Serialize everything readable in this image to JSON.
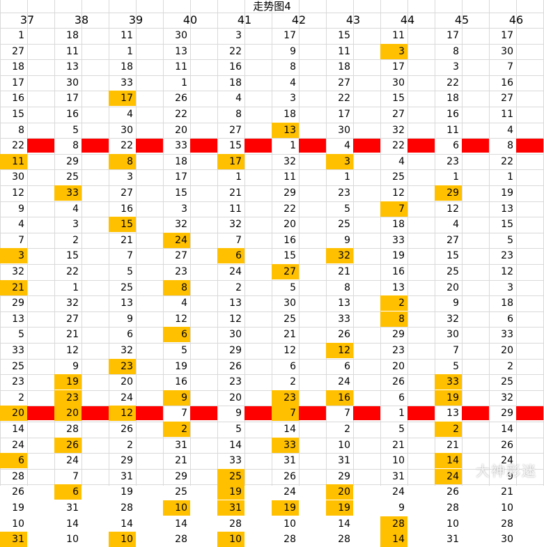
{
  "title": "走势图4",
  "headers": [
    "37",
    "38",
    "39",
    "40",
    "41",
    "42",
    "43",
    "44",
    "45",
    "46"
  ],
  "rows": [
    [
      "1",
      "18",
      "11",
      "30",
      "3",
      "17",
      "15",
      "11",
      "17",
      "17"
    ],
    [
      "27",
      "11",
      "1",
      "13",
      "22",
      "9",
      "11",
      "3",
      "8",
      "30"
    ],
    [
      "18",
      "13",
      "18",
      "11",
      "16",
      "8",
      "18",
      "17",
      "3",
      "7"
    ],
    [
      "17",
      "30",
      "33",
      "1",
      "18",
      "4",
      "27",
      "30",
      "22",
      "16"
    ],
    [
      "16",
      "17",
      "17",
      "26",
      "4",
      "3",
      "22",
      "15",
      "18",
      "27"
    ],
    [
      "15",
      "16",
      "4",
      "22",
      "8",
      "18",
      "17",
      "27",
      "16",
      "11"
    ],
    [
      "8",
      "5",
      "30",
      "20",
      "27",
      "13",
      "30",
      "32",
      "11",
      "4"
    ],
    [
      "22",
      "8",
      "22",
      "33",
      "15",
      "1",
      "4",
      "22",
      "6",
      "8"
    ],
    [
      "11",
      "29",
      "8",
      "18",
      "17",
      "32",
      "3",
      "4",
      "23",
      "22"
    ],
    [
      "30",
      "25",
      "3",
      "17",
      "1",
      "11",
      "1",
      "25",
      "1",
      "1"
    ],
    [
      "12",
      "33",
      "27",
      "15",
      "21",
      "29",
      "23",
      "12",
      "29",
      "19"
    ],
    [
      "9",
      "4",
      "16",
      "3",
      "11",
      "22",
      "5",
      "7",
      "12",
      "13"
    ],
    [
      "4",
      "3",
      "15",
      "32",
      "32",
      "20",
      "25",
      "18",
      "4",
      "15"
    ],
    [
      "7",
      "2",
      "21",
      "24",
      "7",
      "16",
      "9",
      "33",
      "27",
      "5"
    ],
    [
      "3",
      "15",
      "7",
      "27",
      "6",
      "15",
      "32",
      "19",
      "15",
      "23"
    ],
    [
      "32",
      "22",
      "5",
      "23",
      "24",
      "27",
      "21",
      "16",
      "25",
      "12"
    ],
    [
      "21",
      "1",
      "25",
      "8",
      "2",
      "5",
      "8",
      "13",
      "20",
      "3"
    ],
    [
      "29",
      "32",
      "13",
      "4",
      "13",
      "30",
      "13",
      "2",
      "9",
      "18"
    ],
    [
      "13",
      "27",
      "9",
      "12",
      "12",
      "25",
      "33",
      "8",
      "32",
      "6"
    ],
    [
      "5",
      "21",
      "6",
      "6",
      "30",
      "21",
      "26",
      "29",
      "30",
      "33"
    ],
    [
      "33",
      "12",
      "32",
      "5",
      "29",
      "12",
      "12",
      "23",
      "7",
      "20"
    ],
    [
      "25",
      "9",
      "23",
      "19",
      "26",
      "6",
      "6",
      "20",
      "5",
      "2"
    ],
    [
      "23",
      "19",
      "20",
      "16",
      "23",
      "2",
      "24",
      "26",
      "33",
      "25"
    ],
    [
      "2",
      "23",
      "24",
      "9",
      "20",
      "23",
      "16",
      "6",
      "19",
      "32"
    ],
    [
      "20",
      "20",
      "12",
      "7",
      "9",
      "7",
      "7",
      "1",
      "13",
      "29"
    ],
    [
      "14",
      "28",
      "26",
      "2",
      "5",
      "14",
      "2",
      "5",
      "2",
      "14"
    ],
    [
      "24",
      "26",
      "2",
      "31",
      "14",
      "33",
      "10",
      "21",
      "21",
      "26"
    ],
    [
      "6",
      "24",
      "29",
      "21",
      "33",
      "31",
      "31",
      "10",
      "14",
      "24"
    ],
    [
      "28",
      "7",
      "31",
      "29",
      "25",
      "26",
      "29",
      "31",
      "24",
      "9"
    ],
    [
      "26",
      "6",
      "19",
      "25",
      "19",
      "24",
      "20",
      "24",
      "26",
      "21"
    ],
    [
      "19",
      "31",
      "28",
      "10",
      "31",
      "19",
      "19",
      "9",
      "28",
      "10"
    ],
    [
      "10",
      "14",
      "14",
      "14",
      "28",
      "10",
      "14",
      "28",
      "10",
      "28"
    ],
    [
      "31",
      "10",
      "10",
      "28",
      "10",
      "28",
      "28",
      "14",
      "31",
      "30"
    ]
  ],
  "highlighted": [
    [
      1,
      7
    ],
    [
      4,
      2
    ],
    [
      6,
      5
    ],
    [
      8,
      0
    ],
    [
      8,
      2
    ],
    [
      8,
      4
    ],
    [
      8,
      6
    ],
    [
      10,
      1
    ],
    [
      10,
      8
    ],
    [
      11,
      7
    ],
    [
      12,
      2
    ],
    [
      13,
      3
    ],
    [
      14,
      0
    ],
    [
      14,
      4
    ],
    [
      14,
      6
    ],
    [
      15,
      5
    ],
    [
      16,
      0
    ],
    [
      16,
      3
    ],
    [
      17,
      7
    ],
    [
      18,
      7
    ],
    [
      19,
      3
    ],
    [
      20,
      6
    ],
    [
      21,
      2
    ],
    [
      22,
      1
    ],
    [
      22,
      8
    ],
    [
      23,
      1
    ],
    [
      23,
      3
    ],
    [
      23,
      5
    ],
    [
      23,
      6
    ],
    [
      23,
      8
    ],
    [
      24,
      0
    ],
    [
      24,
      1
    ],
    [
      24,
      2
    ],
    [
      24,
      5
    ],
    [
      25,
      3
    ],
    [
      25,
      8
    ],
    [
      26,
      1
    ],
    [
      26,
      5
    ],
    [
      27,
      0
    ],
    [
      27,
      8
    ],
    [
      28,
      4
    ],
    [
      28,
      8
    ],
    [
      29,
      1
    ],
    [
      29,
      4
    ],
    [
      29,
      6
    ],
    [
      30,
      3
    ],
    [
      30,
      4
    ],
    [
      30,
      5
    ],
    [
      30,
      6
    ],
    [
      31,
      7
    ],
    [
      32,
      0
    ],
    [
      32,
      2
    ],
    [
      32,
      4
    ],
    [
      32,
      7
    ]
  ],
  "red_band_rows": [
    7,
    24
  ],
  "watermark": "大神彩迷",
  "colors": {
    "highlight": "#ffc000",
    "band": "#ff0000",
    "grid": "#d9d9d9"
  }
}
